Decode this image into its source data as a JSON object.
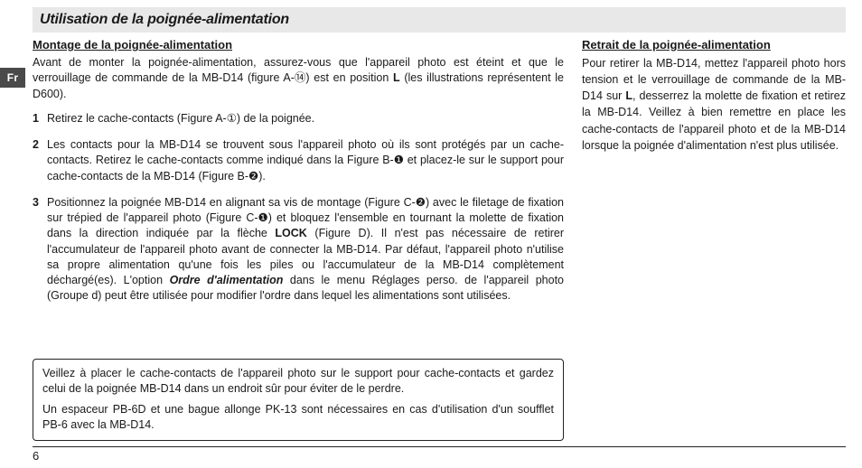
{
  "meta": {
    "language_tab": "Fr",
    "page_number": "6",
    "colors": {
      "title_bar_bg": "#e8e8e8",
      "lang_tab_bg": "#4a4a4a",
      "lang_tab_fg": "#ffffff",
      "text": "#1a1a1a",
      "rule": "#222222"
    },
    "fonts": {
      "title_pt": 16,
      "section_pt": 13,
      "body_pt": 12.5
    }
  },
  "title": "Utilisation de la poignée-alimentation",
  "left": {
    "section_heading": "Montage de la poignée-alimentation",
    "intro_html": "Avant de monter la poignée-alimentation, assurez-vous que l'appareil photo est éteint et que le verrouillage de commande de la MB-D14 (figure A-<span class='circ'>⑭</span>) est en position <span class='bold'>L</span> (les illustrations représentent le D600).",
    "steps_html": [
      "Retirez le cache-contacts (Figure A-<span class='circ'>①</span>) de la poignée.",
      "Les contacts pour la MB-D14 se trouvent sous l'appareil photo où ils sont protégés par un cache-contacts. Retirez le cache-contacts comme indiqué dans la Figure B-<span class='circ'>❶</span> et placez-le sur le support pour cache-contacts de la MB-D14 (Figure B-<span class='circ'>❷</span>).",
      "Positionnez la poignée MB-D14 en alignant sa vis de montage (Figure C-<span class='circ'>❷</span>) avec le filetage de fixation sur trépied de l'appareil photo (Figure C-<span class='circ'>❶</span>) et bloquez l'ensemble en tournant la molette de fixation dans la direction indiquée par la flèche <span class='bold'>LOCK</span> (Figure D). Il n'est pas nécessaire de retirer l'accumulateur de l'appareil photo avant de connecter la MB-D14. Par défaut, l'appareil photo n'utilise sa propre alimentation qu'une fois les piles ou l'accumulateur de la MB-D14 complètement déchargé(es). L'option <span class='bolditalic'>Ordre d'alimentation</span> dans le menu Réglages perso. de l'appareil photo (Groupe d) peut être utilisée pour modifier l'ordre dans lequel les alimentations sont utilisées."
    ],
    "note_paragraphs": [
      "Veillez à placer le cache-contacts de l'appareil photo sur le support pour cache-contacts et gardez celui de la poignée MB-D14 dans un endroit sûr pour éviter de le perdre.",
      "Un espaceur PB-6D et une bague allonge PK-13 sont nécessaires en cas d'utilisation d'un soufflet PB-6 avec la MB-D14."
    ]
  },
  "right": {
    "section_heading": "Retrait de la poignée-alimentation",
    "body_html": "Pour retirer la MB-D14, mettez l'appareil photo hors tension et le verrouillage de commande de la MB-D14 sur <span class='bold'>L</span>, desserrez la molette de fixation et retirez la MB-D14. Veillez à bien remettre en place les cache-contacts de l'appareil photo et de la MB-D14 lorsque la poignée d'alimentation n'est plus utilisée."
  }
}
